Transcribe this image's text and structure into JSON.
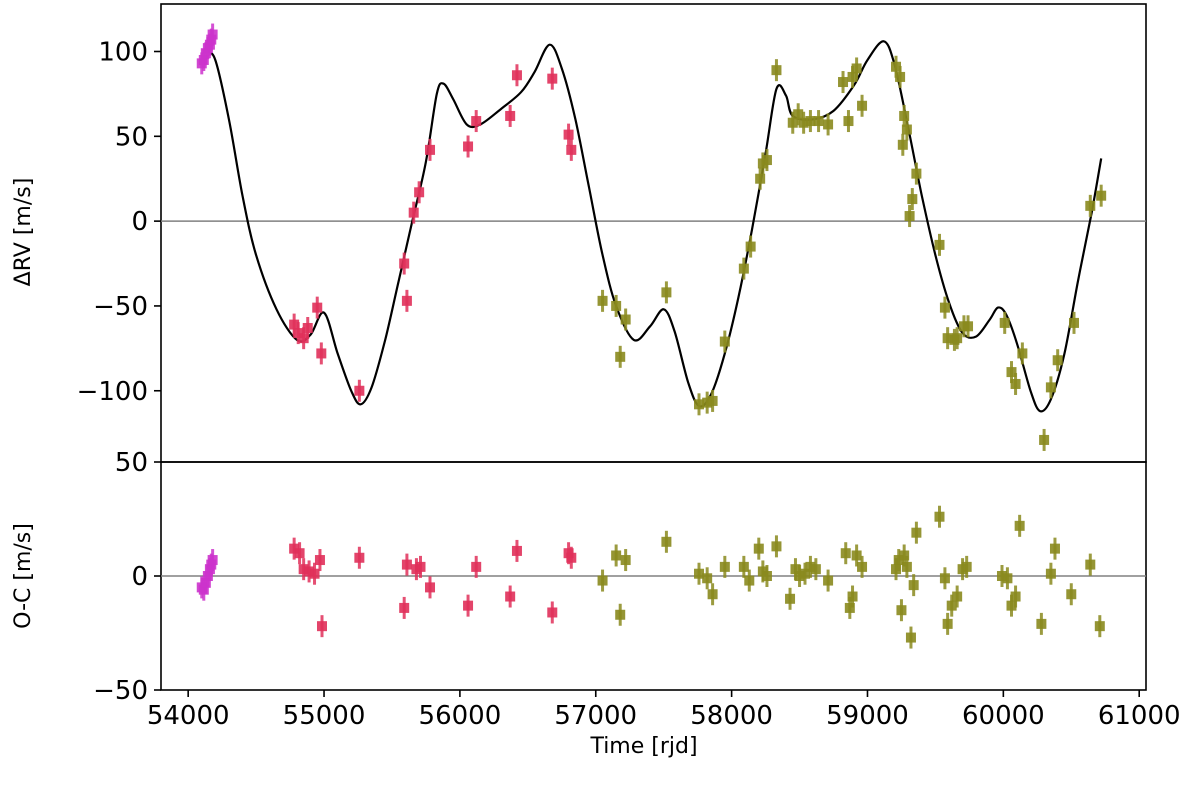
{
  "chart_data": [
    {
      "type": "scatter",
      "panel": "rv",
      "ylabel": "ΔRV [m/s]",
      "xlabel": "",
      "xlim": [
        53800,
        61050
      ],
      "ylim": [
        -142,
        128
      ],
      "yticks": [
        100,
        50,
        0,
        -50,
        -100
      ],
      "ytick_labels": [
        "100",
        "50",
        "0",
        "−50",
        "−100"
      ],
      "reference_line": 0,
      "model_curve": {
        "color": "#000000",
        "points": [
          [
            54130,
            100
          ],
          [
            54200,
            95
          ],
          [
            54300,
            60
          ],
          [
            54400,
            15
          ],
          [
            54500,
            -20
          ],
          [
            54650,
            -52
          ],
          [
            54800,
            -70
          ],
          [
            54900,
            -67
          ],
          [
            55000,
            -54
          ],
          [
            55100,
            -78
          ],
          [
            55200,
            -100
          ],
          [
            55270,
            -108
          ],
          [
            55350,
            -98
          ],
          [
            55450,
            -70
          ],
          [
            55550,
            -35
          ],
          [
            55650,
            0
          ],
          [
            55750,
            35
          ],
          [
            55830,
            75
          ],
          [
            55880,
            81
          ],
          [
            55950,
            72
          ],
          [
            56050,
            57
          ],
          [
            56150,
            57
          ],
          [
            56300,
            66
          ],
          [
            56450,
            76
          ],
          [
            56550,
            88
          ],
          [
            56660,
            104
          ],
          [
            56750,
            90
          ],
          [
            56850,
            60
          ],
          [
            56950,
            20
          ],
          [
            57050,
            -20
          ],
          [
            57150,
            -50
          ],
          [
            57280,
            -70
          ],
          [
            57400,
            -62
          ],
          [
            57500,
            -52
          ],
          [
            57580,
            -65
          ],
          [
            57680,
            -95
          ],
          [
            57760,
            -109
          ],
          [
            57850,
            -102
          ],
          [
            57950,
            -78
          ],
          [
            58050,
            -45
          ],
          [
            58150,
            -5
          ],
          [
            58250,
            40
          ],
          [
            58330,
            78
          ],
          [
            58400,
            74
          ],
          [
            58450,
            62
          ],
          [
            58600,
            60
          ],
          [
            58750,
            65
          ],
          [
            58900,
            80
          ],
          [
            59000,
            95
          ],
          [
            59120,
            106
          ],
          [
            59200,
            92
          ],
          [
            59300,
            55
          ],
          [
            59400,
            15
          ],
          [
            59500,
            -20
          ],
          [
            59600,
            -48
          ],
          [
            59700,
            -66
          ],
          [
            59800,
            -68
          ],
          [
            59900,
            -58
          ],
          [
            59960,
            -51
          ],
          [
            60020,
            -55
          ],
          [
            60100,
            -72
          ],
          [
            60200,
            -100
          ],
          [
            60270,
            -112
          ],
          [
            60350,
            -105
          ],
          [
            60450,
            -78
          ],
          [
            60550,
            -35
          ],
          [
            60650,
            5
          ],
          [
            60720,
            37
          ]
        ]
      },
      "series": [
        {
          "color": "#cc33cc",
          "points": [
            [
              54100,
              93
            ],
            [
              54115,
              95
            ],
            [
              54130,
              99
            ],
            [
              54145,
              102
            ],
            [
              54160,
              104
            ],
            [
              54170,
              107
            ],
            [
              54180,
              110
            ]
          ]
        },
        {
          "color": "#e0305a",
          "points": [
            [
              54780,
              -61
            ],
            [
              54810,
              -66
            ],
            [
              54850,
              -69
            ],
            [
              54880,
              -63
            ],
            [
              54950,
              -51
            ],
            [
              54980,
              -78
            ],
            [
              55260,
              -100
            ],
            [
              55590,
              -25
            ],
            [
              55610,
              -47
            ],
            [
              55660,
              5
            ],
            [
              55700,
              17
            ],
            [
              55780,
              42
            ],
            [
              56060,
              44
            ],
            [
              56120,
              59
            ],
            [
              56370,
              62
            ],
            [
              56420,
              86
            ],
            [
              56680,
              84
            ],
            [
              56800,
              51
            ],
            [
              56820,
              42
            ]
          ]
        },
        {
          "color": "#8a8a1e",
          "points": [
            [
              57050,
              -47
            ],
            [
              57150,
              -50
            ],
            [
              57180,
              -80
            ],
            [
              57220,
              -58
            ],
            [
              57520,
              -42
            ],
            [
              57760,
              -108
            ],
            [
              57820,
              -107
            ],
            [
              57860,
              -106
            ],
            [
              57950,
              -71
            ],
            [
              58090,
              -28
            ],
            [
              58140,
              -15
            ],
            [
              58210,
              25
            ],
            [
              58230,
              34
            ],
            [
              58260,
              36
            ],
            [
              58330,
              89
            ],
            [
              58450,
              58
            ],
            [
              58490,
              63
            ],
            [
              58530,
              58
            ],
            [
              58580,
              59
            ],
            [
              58640,
              59
            ],
            [
              58710,
              57
            ],
            [
              58820,
              82
            ],
            [
              58860,
              59
            ],
            [
              58890,
              85
            ],
            [
              58920,
              90
            ],
            [
              58960,
              68
            ],
            [
              59210,
              91
            ],
            [
              59240,
              85
            ],
            [
              59260,
              45
            ],
            [
              59270,
              62
            ],
            [
              59290,
              54
            ],
            [
              59310,
              3
            ],
            [
              59330,
              13
            ],
            [
              59360,
              28
            ],
            [
              59530,
              -14
            ],
            [
              59570,
              -51
            ],
            [
              59590,
              -69
            ],
            [
              59640,
              -70
            ],
            [
              59660,
              -69
            ],
            [
              59710,
              -62
            ],
            [
              59740,
              -62
            ],
            [
              60010,
              -60
            ],
            [
              60060,
              -89
            ],
            [
              60090,
              -96
            ],
            [
              60140,
              -78
            ],
            [
              60300,
              -129
            ],
            [
              60350,
              -98
            ],
            [
              60400,
              -82
            ],
            [
              60520,
              -60
            ],
            [
              60640,
              9
            ],
            [
              60720,
              15
            ]
          ]
        }
      ]
    },
    {
      "type": "scatter",
      "panel": "residuals",
      "ylabel": "O-C [m/s]",
      "xlabel": "Time [rjd]",
      "xlim": [
        53800,
        61050
      ],
      "ylim": [
        -50,
        50
      ],
      "yticks": [
        50,
        0,
        -50
      ],
      "ytick_labels": [
        "50",
        "0",
        "−50"
      ],
      "xticks": [
        54000,
        55000,
        56000,
        57000,
        58000,
        59000,
        60000,
        61000
      ],
      "xtick_labels": [
        "54000",
        "55000",
        "56000",
        "57000",
        "58000",
        "59000",
        "60000",
        "61000"
      ],
      "reference_line": 0,
      "series": [
        {
          "color": "#cc33cc",
          "points": [
            [
              54100,
              -5
            ],
            [
              54115,
              -6
            ],
            [
              54130,
              -3
            ],
            [
              54145,
              0
            ],
            [
              54160,
              3
            ],
            [
              54170,
              5
            ],
            [
              54180,
              7
            ]
          ]
        },
        {
          "color": "#e0305a",
          "points": [
            [
              54780,
              12
            ],
            [
              54820,
              10
            ],
            [
              54850,
              3
            ],
            [
              54890,
              2
            ],
            [
              54930,
              1
            ],
            [
              54970,
              7
            ],
            [
              54985,
              -22
            ],
            [
              55260,
              8
            ],
            [
              55590,
              -14
            ],
            [
              55610,
              5
            ],
            [
              55680,
              3
            ],
            [
              55710,
              4
            ],
            [
              55780,
              -5
            ],
            [
              56060,
              -13
            ],
            [
              56120,
              4
            ],
            [
              56370,
              -9
            ],
            [
              56420,
              11
            ],
            [
              56680,
              -16
            ],
            [
              56800,
              10
            ],
            [
              56820,
              8
            ]
          ]
        },
        {
          "color": "#8a8a1e",
          "points": [
            [
              57050,
              -2
            ],
            [
              57150,
              9
            ],
            [
              57180,
              -17
            ],
            [
              57220,
              7
            ],
            [
              57520,
              15
            ],
            [
              57760,
              1
            ],
            [
              57820,
              -1
            ],
            [
              57860,
              -8
            ],
            [
              57950,
              4
            ],
            [
              58090,
              4
            ],
            [
              58130,
              -2
            ],
            [
              58200,
              12
            ],
            [
              58230,
              2
            ],
            [
              58260,
              0
            ],
            [
              58330,
              13
            ],
            [
              58430,
              -10
            ],
            [
              58470,
              3
            ],
            [
              58500,
              0
            ],
            [
              58540,
              1
            ],
            [
              58580,
              4
            ],
            [
              58620,
              3
            ],
            [
              58710,
              -2
            ],
            [
              58840,
              10
            ],
            [
              58870,
              -14
            ],
            [
              58890,
              -9
            ],
            [
              58920,
              9
            ],
            [
              58960,
              4
            ],
            [
              59210,
              3
            ],
            [
              59230,
              7
            ],
            [
              59250,
              -15
            ],
            [
              59270,
              9
            ],
            [
              59290,
              4
            ],
            [
              59320,
              -27
            ],
            [
              59340,
              -4
            ],
            [
              59360,
              19
            ],
            [
              59530,
              26
            ],
            [
              59570,
              -1
            ],
            [
              59590,
              -21
            ],
            [
              59620,
              -13
            ],
            [
              59660,
              -9
            ],
            [
              59700,
              3
            ],
            [
              59730,
              4
            ],
            [
              59990,
              0
            ],
            [
              60030,
              -1
            ],
            [
              60060,
              -13
            ],
            [
              60090,
              -9
            ],
            [
              60120,
              22
            ],
            [
              60280,
              -21
            ],
            [
              60350,
              1
            ],
            [
              60380,
              12
            ],
            [
              60500,
              -8
            ],
            [
              60640,
              5
            ],
            [
              60710,
              -22
            ]
          ]
        }
      ]
    }
  ]
}
